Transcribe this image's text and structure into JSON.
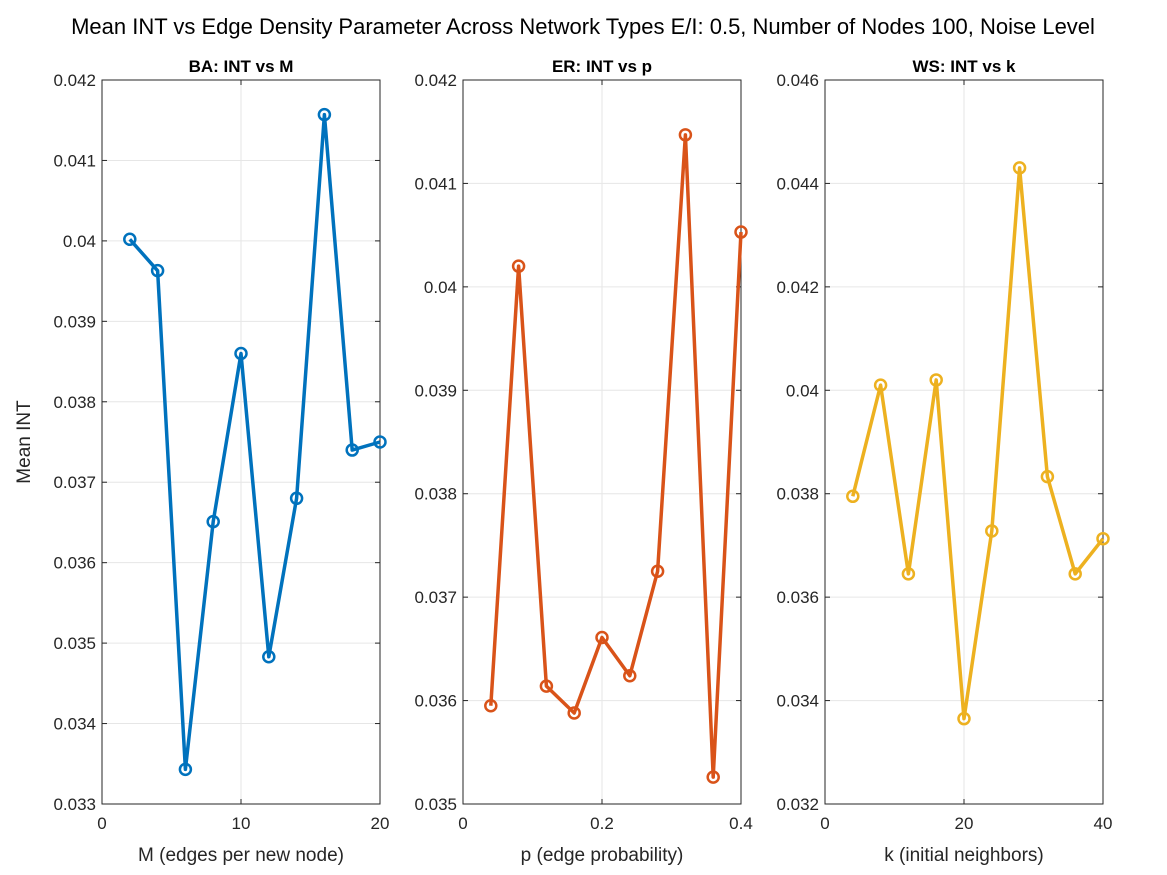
{
  "figure": {
    "title": "Mean INT vs Edge Density Parameter Across Network Types E/I: 0.5, Number of Nodes 100, Noise Level"
  },
  "chart_data": [
    {
      "type": "line",
      "title": "BA: INT vs M",
      "xlabel": "M (edges per new node)",
      "ylabel": "Mean INT",
      "xlim": [
        0,
        20
      ],
      "ylim": [
        0.033,
        0.042
      ],
      "xticks": [
        0,
        10,
        20
      ],
      "xtick_labels": [
        "0",
        "10",
        "20"
      ],
      "yticks": [
        0.033,
        0.034,
        0.035,
        0.036,
        0.037,
        0.038,
        0.039,
        0.04,
        0.041,
        0.042
      ],
      "ytick_labels": [
        "0.033",
        "0.034",
        "0.035",
        "0.036",
        "0.037",
        "0.038",
        "0.039",
        "0.04",
        "0.041",
        "0.042"
      ],
      "grid": true,
      "color": "#0072BD",
      "marker": "circle",
      "x": [
        2,
        4,
        6,
        8,
        10,
        12,
        14,
        16,
        18,
        20
      ],
      "y": [
        0.04002,
        0.03963,
        0.03343,
        0.03651,
        0.0386,
        0.03483,
        0.0368,
        0.04157,
        0.0374,
        0.0375
      ]
    },
    {
      "type": "line",
      "title": "ER: INT vs p",
      "xlabel": "p (edge probability)",
      "ylabel": "",
      "xlim": [
        0,
        0.4
      ],
      "ylim": [
        0.035,
        0.042
      ],
      "xticks": [
        0,
        0.2,
        0.4
      ],
      "xtick_labels": [
        "0",
        "0.2",
        "0.4"
      ],
      "yticks": [
        0.035,
        0.036,
        0.037,
        0.038,
        0.039,
        0.04,
        0.041,
        0.042
      ],
      "ytick_labels": [
        "0.035",
        "0.036",
        "0.037",
        "0.038",
        "0.039",
        "0.04",
        "0.041",
        "0.042"
      ],
      "grid": true,
      "color": "#D95319",
      "marker": "circle",
      "x": [
        0.04,
        0.08,
        0.12,
        0.16,
        0.2,
        0.24,
        0.28,
        0.32,
        0.36,
        0.4
      ],
      "y": [
        0.03595,
        0.0402,
        0.03614,
        0.03588,
        0.03661,
        0.03624,
        0.03725,
        0.04147,
        0.03526,
        0.04053
      ]
    },
    {
      "type": "line",
      "title": "WS: INT vs k",
      "xlabel": "k (initial neighbors)",
      "ylabel": "",
      "xlim": [
        0,
        40
      ],
      "ylim": [
        0.032,
        0.046
      ],
      "xticks": [
        0,
        20,
        40
      ],
      "xtick_labels": [
        "0",
        "20",
        "40"
      ],
      "yticks": [
        0.032,
        0.034,
        0.036,
        0.038,
        0.04,
        0.042,
        0.044,
        0.046
      ],
      "ytick_labels": [
        "0.032",
        "0.034",
        "0.036",
        "0.038",
        "0.04",
        "0.042",
        "0.044",
        "0.046"
      ],
      "grid": true,
      "color": "#EDB120",
      "marker": "circle",
      "x": [
        4,
        8,
        12,
        16,
        20,
        24,
        28,
        32,
        36,
        40
      ],
      "y": [
        0.03795,
        0.0401,
        0.03645,
        0.0402,
        0.03365,
        0.03728,
        0.0443,
        0.03833,
        0.03645,
        0.03713
      ]
    }
  ]
}
